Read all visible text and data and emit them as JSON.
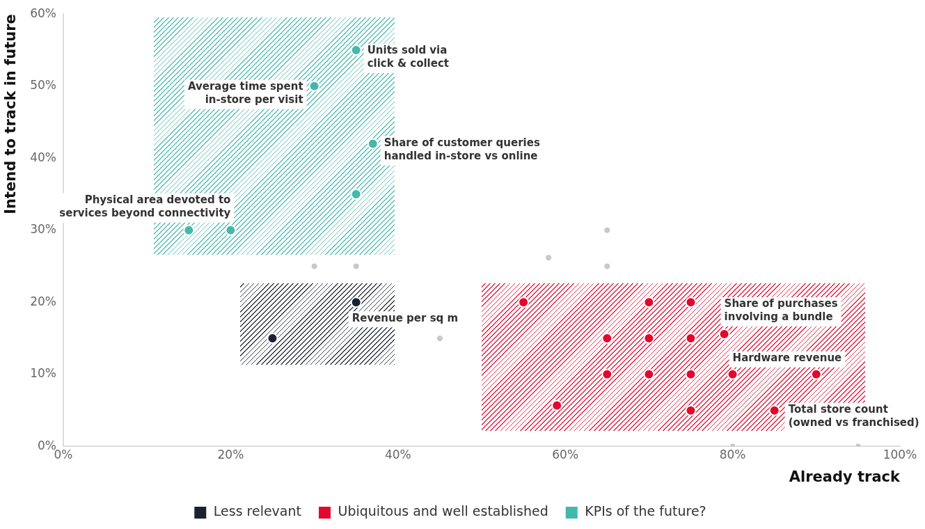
{
  "chart_data": {
    "type": "scatter",
    "xlabel": "Already track",
    "ylabel": "Intend to track in future",
    "xlim": [
      0,
      100
    ],
    "ylim": [
      0,
      60
    ],
    "xticks": [
      {
        "value": 0,
        "label": "0%"
      },
      {
        "value": 20,
        "label": "20%"
      },
      {
        "value": 40,
        "label": "40%"
      },
      {
        "value": 60,
        "label": "60%"
      },
      {
        "value": 80,
        "label": "80%"
      },
      {
        "value": 100,
        "label": "100%"
      }
    ],
    "yticks": [
      {
        "value": 0,
        "label": "0%"
      },
      {
        "value": 10,
        "label": "10%"
      },
      {
        "value": 20,
        "label": "20%"
      },
      {
        "value": 30,
        "label": "30%"
      },
      {
        "value": 40,
        "label": "40%"
      },
      {
        "value": 50,
        "label": "50%"
      },
      {
        "value": 60,
        "label": "60%"
      }
    ],
    "grid": false,
    "legend": "bottom",
    "marker": "circle",
    "series": [
      {
        "name": "Less relevant",
        "color": "#1b2130",
        "x": [
          25,
          35
        ],
        "values": [
          15,
          20
        ]
      },
      {
        "name": "Ubiquitous and well established",
        "color": "#e3072e",
        "x": [
          55,
          70,
          75,
          65,
          70,
          75,
          79,
          65,
          70,
          75,
          80,
          90,
          59,
          75,
          85
        ],
        "values": [
          20,
          20,
          20,
          15,
          15,
          15,
          15.6,
          10,
          10,
          10,
          10,
          10,
          5.7,
          5,
          5
        ]
      },
      {
        "name": "KPIs of the future?",
        "color": "#45b8ac",
        "x": [
          35,
          30,
          37,
          35,
          15,
          20
        ],
        "values": [
          55,
          50,
          42,
          35,
          30,
          30
        ]
      },
      {
        "color": "#c8c8c8",
        "x": [
          30,
          35,
          58,
          65,
          65,
          45,
          80,
          95
        ],
        "values": [
          25,
          25,
          26.2,
          30,
          25,
          15,
          0,
          0
        ]
      }
    ],
    "annotations": [
      {
        "text": "Units sold via\nclick & collect",
        "x": 35,
        "y": 55
      },
      {
        "text": "Average time spent\nin-store per visit",
        "x": 30,
        "y": 50
      },
      {
        "text": "Share of customer queries\nhandled in-store vs online",
        "x": 37,
        "y": 42
      },
      {
        "text": "Physical area devoted to\nservices beyond connectivity",
        "x": 20,
        "y": 30
      },
      {
        "text": "Revenue per sq m",
        "x": 35,
        "y": 20
      },
      {
        "text": "Share of purchases\ninvolving a bundle",
        "x": 79,
        "y": 15.6
      },
      {
        "text": "Hardware revenue",
        "x": 80,
        "y": 10
      },
      {
        "text": "Total store count\n(owned vs franchised)",
        "x": 85,
        "y": 5
      }
    ]
  }
}
